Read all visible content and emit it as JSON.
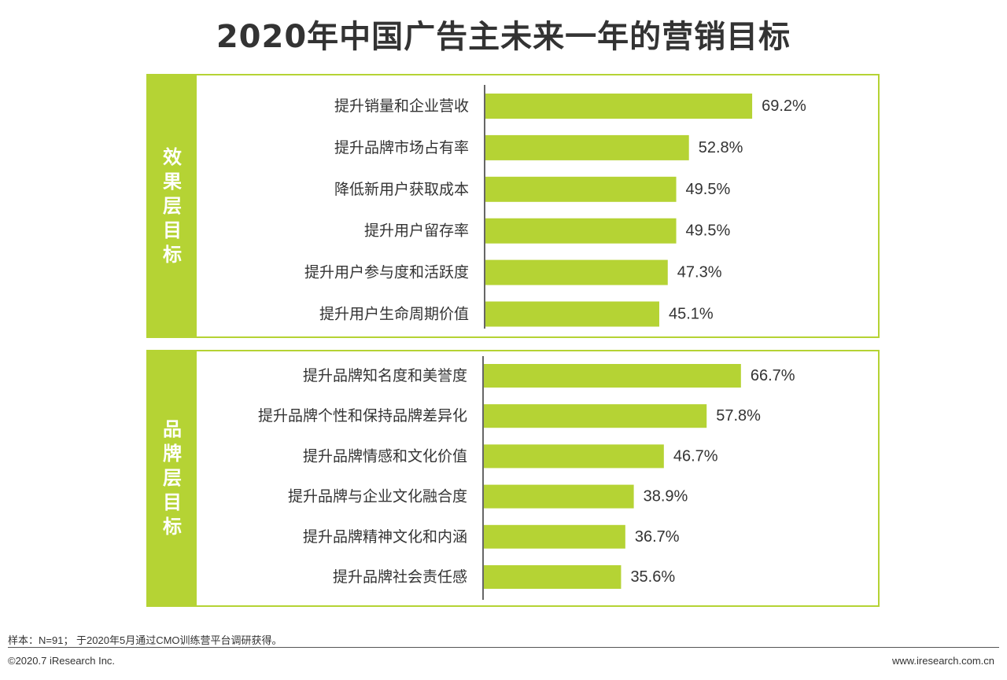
{
  "title": "2020年中国广告主未来一年的营销目标",
  "accent_color": "#b5d334",
  "chart_data": [
    {
      "type": "bar",
      "orientation": "horizontal",
      "group_label": "效果层目标",
      "categories": [
        "提升销量和企业营收",
        "提升品牌市场占有率",
        "降低新用户获取成本",
        "提升用户留存率",
        "提升用户参与度和活跃度",
        "提升用户生命周期价值"
      ],
      "values": [
        69.2,
        52.8,
        49.5,
        49.5,
        47.3,
        45.1
      ],
      "labels": [
        "69.2%",
        "52.8%",
        "49.5%",
        "49.5%",
        "47.3%",
        "45.1%"
      ],
      "unit": "%",
      "xlim": [
        0,
        100
      ],
      "bar_color": "#b5d334",
      "grid": false
    },
    {
      "type": "bar",
      "orientation": "horizontal",
      "group_label": "品牌层目标",
      "categories": [
        "提升品牌知名度和美誉度",
        "提升品牌个性和保持品牌差异化",
        "提升品牌情感和文化价值",
        "提升品牌与企业文化融合度",
        "提升品牌精神文化和内涵",
        "提升品牌社会责任感"
      ],
      "values": [
        66.7,
        57.8,
        46.7,
        38.9,
        36.7,
        35.6
      ],
      "labels": [
        "66.7%",
        "57.8%",
        "46.7%",
        "38.9%",
        "36.7%",
        "35.6%"
      ],
      "unit": "%",
      "xlim": [
        0,
        100
      ],
      "bar_color": "#b5d334",
      "grid": false
    }
  ],
  "footer": {
    "note": "样本：N=91； 于2020年5月通过CMO训练营平台调研获得。",
    "copyright": "©2020.7 iResearch Inc.",
    "url": "www.iresearch.com.cn"
  }
}
